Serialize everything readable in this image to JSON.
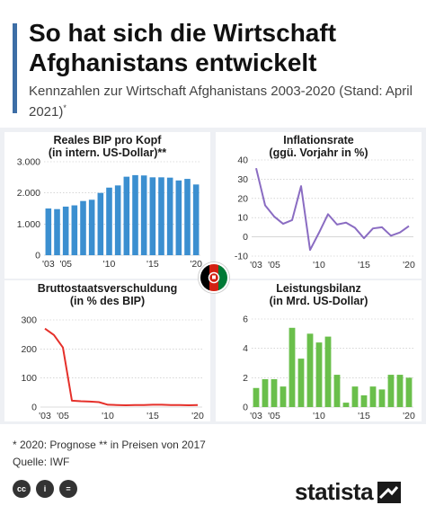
{
  "header": {
    "title": "So hat sich die Wirtschaft Afghanistans entwickelt",
    "subtitle": "Kennzahlen zur Wirtschaft Afghanistans 2003-2020 (Stand: April 2021)",
    "subtitle_mark": "*"
  },
  "colors": {
    "blue": "#3b8fd0",
    "purple": "#8a6cc2",
    "red": "#e5302a",
    "green": "#6abf4b",
    "accent": "#3d6ea6",
    "grid": "#bdbdbd"
  },
  "chart_data": [
    {
      "id": "gdp",
      "type": "bar",
      "title": [
        "Reales BIP pro Kopf",
        "(in intern. US-Dollar)**"
      ],
      "x": [
        2003,
        2004,
        2005,
        2006,
        2007,
        2008,
        2009,
        2010,
        2011,
        2012,
        2013,
        2014,
        2015,
        2016,
        2017,
        2018,
        2019,
        2020
      ],
      "values": [
        1500,
        1480,
        1560,
        1600,
        1740,
        1780,
        2000,
        2170,
        2240,
        2520,
        2570,
        2560,
        2500,
        2500,
        2490,
        2400,
        2450,
        2270
      ],
      "ylim": [
        0,
        3000
      ],
      "yticks": [
        0,
        1000,
        2000,
        3000
      ],
      "ytick_labels": [
        "0",
        "1.000",
        "2.000",
        "3.000"
      ],
      "xtick_labels": [
        "'03",
        "'05",
        "'10",
        "'15",
        "'20"
      ],
      "color": "#3b8fd0",
      "grid": true
    },
    {
      "id": "inflation",
      "type": "line",
      "title": [
        "Inflationsrate",
        "(ggü. Vorjahr in %)"
      ],
      "x": [
        2003,
        2004,
        2005,
        2006,
        2007,
        2008,
        2009,
        2010,
        2011,
        2012,
        2013,
        2014,
        2015,
        2016,
        2017,
        2018,
        2019,
        2020
      ],
      "values": [
        35.7,
        16.4,
        10.6,
        6.8,
        8.7,
        26.4,
        -6.8,
        2.2,
        11.8,
        6.4,
        7.4,
        4.7,
        -0.7,
        4.4,
        5.0,
        0.6,
        2.3,
        5.6
      ],
      "ylim": [
        -10,
        40
      ],
      "yticks": [
        -10,
        0,
        10,
        20,
        30,
        40
      ],
      "ytick_labels": [
        "-10",
        "0",
        "10",
        "20",
        "30",
        "40"
      ],
      "xtick_labels": [
        "'03",
        "'05",
        "'10",
        "'15",
        "'20"
      ],
      "color": "#8a6cc2",
      "grid": true
    },
    {
      "id": "debt",
      "type": "line",
      "title": [
        "Bruttostaatsverschuldung",
        "(in % des BIP)"
      ],
      "x": [
        2003,
        2004,
        2005,
        2006,
        2007,
        2008,
        2009,
        2010,
        2011,
        2012,
        2013,
        2014,
        2015,
        2016,
        2017,
        2018,
        2019,
        2020
      ],
      "values": [
        270,
        248,
        205,
        22,
        20,
        19,
        17,
        8,
        7,
        6,
        7,
        7,
        8,
        8,
        7,
        7,
        6,
        7
      ],
      "ylim": [
        0,
        300
      ],
      "yticks": [
        0,
        100,
        200,
        300
      ],
      "ytick_labels": [
        "0",
        "100",
        "200",
        "300"
      ],
      "xtick_labels": [
        "'03",
        "'05",
        "'10",
        "'15",
        "'20"
      ],
      "color": "#e5302a",
      "grid": true
    },
    {
      "id": "current_account",
      "type": "bar",
      "title": [
        "Leistungsbilanz",
        "(in Mrd. US-Dollar)"
      ],
      "x": [
        2003,
        2004,
        2005,
        2006,
        2007,
        2008,
        2009,
        2010,
        2011,
        2012,
        2013,
        2014,
        2015,
        2016,
        2017,
        2018,
        2019,
        2020
      ],
      "values": [
        1.3,
        1.9,
        1.9,
        1.4,
        5.4,
        3.3,
        5.0,
        4.4,
        4.8,
        2.2,
        0.3,
        1.4,
        0.8,
        1.4,
        1.2,
        2.2,
        2.2,
        2.0
      ],
      "ylim": [
        0,
        6
      ],
      "yticks": [
        0,
        2,
        4,
        6
      ],
      "ytick_labels": [
        "0",
        "2",
        "4",
        "6"
      ],
      "xtick_labels": [
        "'03",
        "'05",
        "'10",
        "'15",
        "'20"
      ],
      "color": "#6abf4b",
      "grid": true
    }
  ],
  "footer": {
    "note": "* 2020: Prognose    ** in Preisen von 2017",
    "source": "Quelle: IWF",
    "brand": "statista"
  },
  "icons": [
    "cc-icon",
    "by-icon",
    "nd-icon",
    "statista-logo-icon",
    "afghanistan-flag-icon"
  ]
}
